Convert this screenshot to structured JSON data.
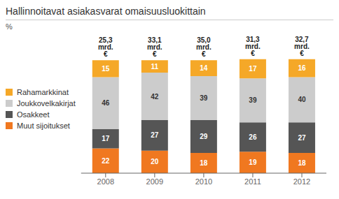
{
  "chart_data": {
    "type": "bar",
    "stacked": true,
    "title": "Hallinnoitavat asiakasvarat omaisuusluokittain",
    "ylabel": "%",
    "categories": [
      "2008",
      "2009",
      "2010",
      "2011",
      "2012"
    ],
    "series": [
      {
        "name": "Muut sijoitukset",
        "color": "#f07820",
        "values": [
          22,
          20,
          18,
          19,
          18
        ]
      },
      {
        "name": "Osakkeet",
        "color": "#555555",
        "values": [
          17,
          27,
          29,
          26,
          27
        ]
      },
      {
        "name": "Joukkovelkakirjat",
        "color": "#cccccc",
        "values": [
          46,
          42,
          39,
          39,
          40
        ]
      },
      {
        "name": "Rahamarkkinat",
        "color": "#f5a828",
        "values": [
          15,
          11,
          14,
          17,
          16
        ]
      }
    ],
    "annotations": [
      "25,3 mrd. €",
      "33,1 mrd. €",
      "35,0 mrd. €",
      "31,3 mrd. €",
      "32,7 mrd. €"
    ],
    "ylim": [
      0,
      115
    ],
    "data_labels": true,
    "legend": "left",
    "tick_labels": "x",
    "grid": false
  }
}
